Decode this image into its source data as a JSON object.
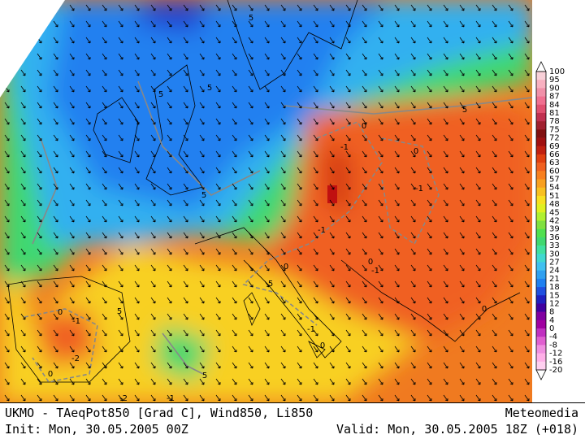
{
  "map": {
    "contour_labels": [
      "5",
      "5",
      "5",
      "5",
      "5",
      "5",
      "5",
      "5",
      "0",
      "-1",
      "0",
      "-1",
      "-1",
      "0",
      "-1",
      "0",
      "0",
      "-1",
      "-2",
      "0",
      "-1",
      "0",
      "0",
      "-2",
      "-1"
    ],
    "legend": {
      "labels": [
        "100",
        "95",
        "90",
        "87",
        "84",
        "81",
        "78",
        "75",
        "72",
        "69",
        "66",
        "63",
        "60",
        "57",
        "54",
        "51",
        "48",
        "45",
        "42",
        "39",
        "36",
        "33",
        "30",
        "27",
        "24",
        "21",
        "18",
        "15",
        "12",
        "8",
        "4",
        "0",
        "-4",
        "-8",
        "-12",
        "-16",
        "-20"
      ],
      "colors": [
        "#f8d0d8",
        "#f8b0c0",
        "#f090a8",
        "#f07090",
        "#e05070",
        "#c03050",
        "#a02030",
        "#801010",
        "#a01010",
        "#c02010",
        "#e04010",
        "#f06020",
        "#f88020",
        "#f8a020",
        "#f8c020",
        "#f8e020",
        "#e0f020",
        "#b0f030",
        "#80e040",
        "#50e050",
        "#40d870",
        "#40e0a0",
        "#40d8d0",
        "#40c0f0",
        "#30a0f0",
        "#2080f0",
        "#2050e0",
        "#2020c0",
        "#4000a0",
        "#8000a0",
        "#a000a0",
        "#c030c0",
        "#e060d0",
        "#f090e0",
        "#ffb0e8",
        "#ffd0f0"
      ]
    },
    "footer": {
      "model": "UKMO - TAeqPot850 [Grad C], Wind850, Li850",
      "brand": "Meteomedia",
      "init": "Init: Mon, 30.05.2005 00Z",
      "valid": "Valid: Mon, 30.05.2005 18Z (+018)"
    }
  }
}
